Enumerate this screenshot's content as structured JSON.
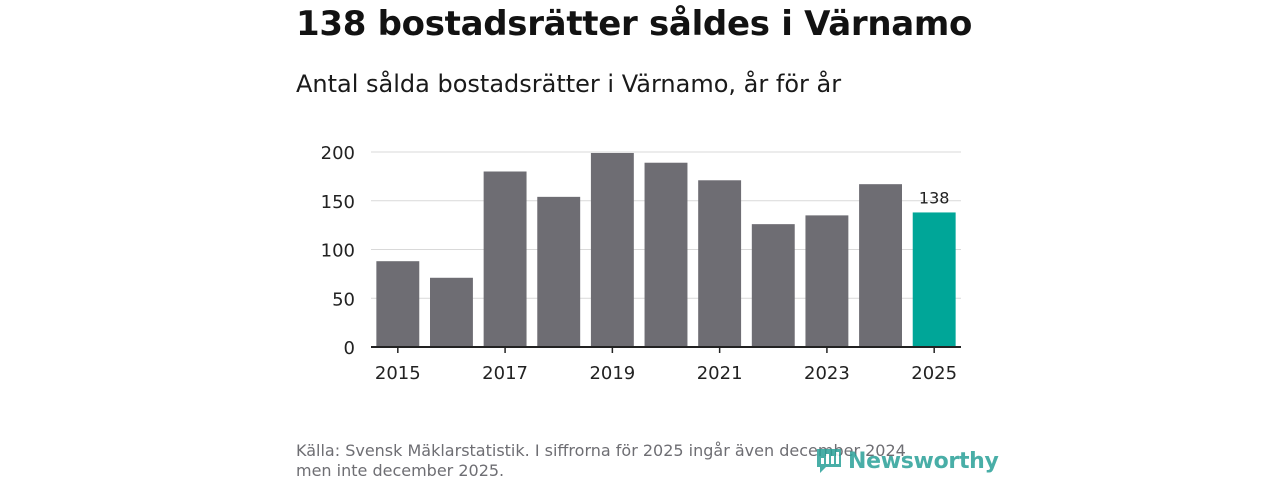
{
  "header": {
    "title": "138 bostadsrätter såldes i Värnamo",
    "subtitle": "Antal sålda bostadsrätter i Värnamo, år för år"
  },
  "footer": {
    "source_line1": "Källa: Svensk Mäklarstatistik. I siffrorna för 2025 ingår även december 2024",
    "source_line2": "men inte december 2025.",
    "logo_text": "Newsworthy",
    "logo_icon": "bar-chart-speech-bubble-icon"
  },
  "colors": {
    "bar": "#6e6d73",
    "highlight": "#00a698",
    "grid": "#d9d9d9",
    "axis": "#222222"
  },
  "chart_data": {
    "type": "bar",
    "title": "Antal sålda bostadsrätter i Värnamo, år för år",
    "xlabel": "",
    "ylabel": "",
    "categories": [
      "2015",
      "2016",
      "2017",
      "2018",
      "2019",
      "2020",
      "2021",
      "2022",
      "2023",
      "2024",
      "2025"
    ],
    "values": [
      88,
      71,
      180,
      154,
      199,
      189,
      171,
      126,
      135,
      167,
      138
    ],
    "highlight_index": 10,
    "data_labels": [
      {
        "index": 10,
        "text": "138"
      }
    ],
    "ylim": [
      0,
      200
    ],
    "yticks": [
      0,
      50,
      100,
      150,
      200
    ],
    "xtick_labels": [
      "2015",
      "2017",
      "2019",
      "2021",
      "2023",
      "2025"
    ],
    "grid": true
  }
}
